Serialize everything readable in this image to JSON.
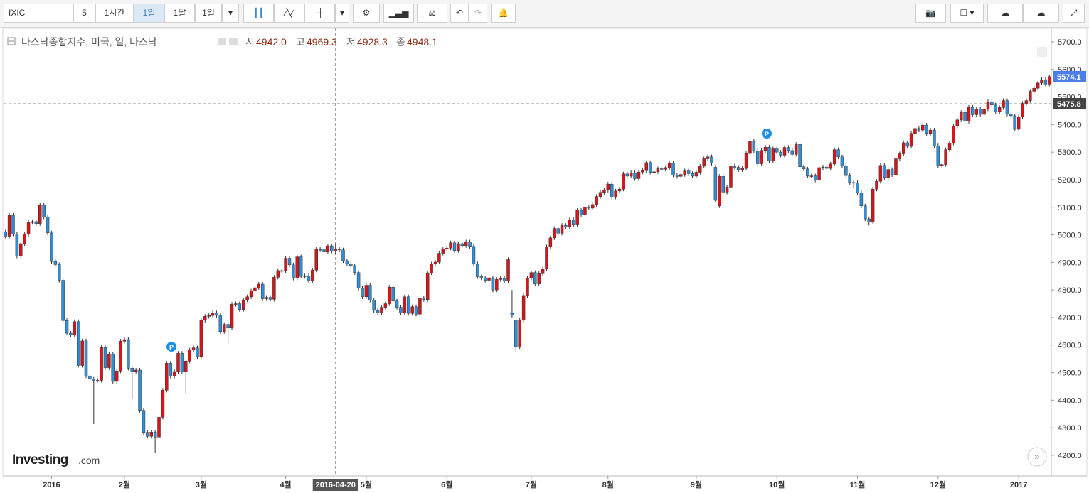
{
  "toolbar": {
    "symbol": "IXIC",
    "buttons": [
      "5",
      "1시간",
      "1일",
      "1달",
      "1일"
    ]
  },
  "chart_data": {
    "type": "candlestick",
    "title": "나스닥종합지수, 미국, 일, 나스닥",
    "readout": [
      {
        "label": "시",
        "value": "4942.0"
      },
      {
        "label": "고",
        "value": "4969.3"
      },
      {
        "label": "저",
        "value": "4928.3"
      },
      {
        "label": "종",
        "value": "4948.1"
      }
    ],
    "categories": [
      null,
      null,
      null,
      null,
      null,
      null,
      null,
      null,
      null,
      null,
      null,
      null,
      "2016",
      null,
      null,
      null,
      null,
      null,
      null,
      null,
      null,
      null,
      null,
      null,
      null,
      null,
      null,
      null,
      null,
      null,
      null,
      "2월",
      null,
      null,
      null,
      null,
      null,
      null,
      null,
      null,
      null,
      null,
      null,
      null,
      null,
      null,
      null,
      null,
      null,
      null,
      null,
      "3월",
      null,
      null,
      null,
      null,
      null,
      null,
      null,
      null,
      null,
      null,
      null,
      null,
      null,
      null,
      null,
      null,
      null,
      null,
      null,
      null,
      null,
      "4월",
      null,
      null,
      null,
      null,
      null,
      null,
      null,
      null,
      null,
      null,
      null,
      null,
      null,
      null,
      null,
      null,
      null,
      null,
      null,
      null,
      "5월",
      null,
      null,
      null,
      null,
      null,
      null,
      null,
      null,
      null,
      null,
      null,
      null,
      null,
      null,
      null,
      null,
      null,
      null,
      null,
      null,
      "6월",
      null,
      null,
      null,
      null,
      null,
      null,
      null,
      null,
      null,
      null,
      null,
      null,
      null,
      null,
      null,
      null,
      null,
      null,
      null,
      null,
      null,
      "7월",
      null,
      null,
      null,
      null,
      null,
      null,
      null,
      null,
      null,
      null,
      null,
      null,
      null,
      null,
      null,
      null,
      null,
      null,
      null,
      "8월",
      null,
      null,
      null,
      null,
      null,
      null,
      null,
      null,
      null,
      null,
      null,
      null,
      null,
      null,
      null,
      null,
      null,
      null,
      null,
      null,
      null,
      null,
      "9월",
      null,
      null,
      null,
      null,
      null,
      null,
      null,
      null,
      null,
      null,
      null,
      null,
      null,
      null,
      null,
      null,
      null,
      null,
      null,
      null,
      "10월",
      null,
      null,
      null,
      null,
      null,
      null,
      null,
      null,
      null,
      null,
      null,
      null,
      null,
      null,
      null,
      null,
      null,
      null,
      null,
      null,
      "11월",
      null,
      null,
      null,
      null,
      null,
      null,
      null,
      null,
      null,
      null,
      null,
      null,
      null,
      null,
      null,
      null,
      null,
      null,
      null,
      null,
      "12월",
      null,
      null,
      null,
      null,
      null,
      null,
      null,
      null,
      null,
      null,
      null,
      null,
      null,
      null,
      null,
      null,
      null,
      null,
      null,
      null,
      "2017",
      null,
      null,
      null,
      null,
      null,
      null,
      null,
      null
    ],
    "open": [
      5010,
      4995,
      5071,
      5003,
      4923,
      4968,
      5002,
      5045,
      5048,
      5041,
      5107,
      5065,
      5007,
      4903,
      4892,
      4835,
      4689,
      4643,
      4637,
      4685,
      4526,
      4615,
      4488,
      4476,
      4472,
      4472,
      4591,
      4518,
      4568,
      4468,
      4506,
      4614,
      4620,
      4516,
      4504,
      4509,
      4363,
      4283,
      4269,
      4284,
      4266,
      4338,
      4436,
      4534,
      4487,
      4504,
      4570,
      4503,
      4542,
      4582,
      4590,
      4558,
      4690,
      4704,
      4707,
      4717,
      4708,
      4649,
      4675,
      4662,
      4748,
      4750,
      4729,
      4764,
      4775,
      4796,
      4808,
      4821,
      4768,
      4773,
      4766,
      4846,
      4870,
      4870,
      4915,
      4891,
      4843,
      4920,
      4849,
      4851,
      4833,
      4872,
      4947,
      4946,
      4938,
      4960,
      4942,
      4948,
      4945,
      4906,
      4895,
      4888,
      4863,
      4806,
      4775,
      4817,
      4763,
      4726,
      4717,
      4737,
      4750,
      4810,
      4760,
      4737,
      4717,
      4775,
      4715,
      4739,
      4712,
      4770,
      4765,
      4862,
      4894,
      4901,
      4933,
      4948,
      4952,
      4971,
      4943,
      4968,
      4961,
      4974,
      4958,
      4895,
      4848,
      4844,
      4835,
      4844,
      4800,
      4838,
      4843,
      4833,
      4715,
      4690,
      4594,
      4691,
      4780,
      4843,
      4863,
      4822,
      4859,
      4876,
      4956,
      4989,
      5023,
      5006,
      5034,
      5029,
      5055,
      5036,
      5089,
      5073,
      5100,
      5097,
      5110,
      5139,
      5154,
      5162,
      5184,
      5137,
      5159,
      5166,
      5221,
      5213,
      5225,
      5204,
      5228,
      5233,
      5262,
      5227,
      5229,
      5240,
      5238,
      5244,
      5260,
      5217,
      5212,
      5219,
      5232,
      5222,
      5213,
      5227,
      5249,
      5276,
      5283,
      5245,
      5105,
      5212,
      5155,
      5173,
      5250,
      5245,
      5236,
      5241,
      5295,
      5339,
      5305,
      5258,
      5306,
      5318,
      5269,
      5312,
      5300,
      5289,
      5317,
      5306,
      5292,
      5328,
      5247,
      5239,
      5213,
      5214,
      5199,
      5244,
      5246,
      5241,
      5257,
      5309,
      5283,
      5251,
      5215,
      5190,
      5189,
      5153,
      5105,
      5058,
      5046,
      5166,
      5194,
      5252,
      5208,
      5237,
      5218,
      5276,
      5294,
      5334,
      5321,
      5368,
      5386,
      5380,
      5398,
      5368,
      5380,
      5323,
      5251,
      5255,
      5309,
      5333,
      5394,
      5417,
      5444,
      5412,
      5463,
      5436,
      5457,
      5437,
      5457,
      5483,
      5471,
      5447,
      5462,
      5487,
      5438,
      5432,
      5383,
      5429,
      5477,
      5487,
      5521,
      5532,
      5551,
      5563,
      5547
    ],
    "high": [
      5018,
      5079,
      5079,
      5011,
      4976,
      5010,
      5053,
      5056,
      5056,
      5115,
      5115,
      5073,
      5015,
      4911,
      4900,
      4843,
      4697,
      4651,
      4693,
      4693,
      4623,
      4623,
      4496,
      4484,
      4480,
      4599,
      4599,
      4576,
      4576,
      4514,
      4622,
      4628,
      4628,
      4524,
      4517,
      4517,
      4371,
      4291,
      4292,
      4292,
      4346,
      4444,
      4542,
      4542,
      4512,
      4578,
      4578,
      4550,
      4590,
      4598,
      4598,
      4698,
      4712,
      4715,
      4725,
      4725,
      4716,
      4683,
      4683,
      4756,
      4758,
      4758,
      4772,
      4783,
      4804,
      4816,
      4829,
      4829,
      4781,
      4781,
      4854,
      4878,
      4878,
      4923,
      4923,
      4899,
      4928,
      4928,
      4859,
      4859,
      4880,
      4955,
      4955,
      4954,
      4968,
      4968,
      4969.3,
      4956,
      4953,
      4914,
      4903,
      4896,
      4871,
      4814,
      4825,
      4825,
      4771,
      4734,
      4745,
      4758,
      4818,
      4818,
      4768,
      4745,
      4783,
      4783,
      4747,
      4747,
      4778,
      4778,
      4870,
      4902,
      4909,
      4941,
      4956,
      4960,
      4979,
      4979,
      4976,
      4976,
      4982,
      4982,
      4966,
      4903,
      4856,
      4852,
      4852,
      4852,
      4846,
      4851,
      4851,
      4918,
      4800,
      4692,
      4699,
      4788,
      4851,
      4871,
      4871,
      4867,
      4884,
      4964,
      4997,
      5031,
      5031,
      5042,
      5042,
      5063,
      5063,
      5097,
      5097,
      5108,
      5108,
      5118,
      5147,
      5162,
      5170,
      5192,
      5192,
      5167,
      5174,
      5229,
      5229,
      5233,
      5233,
      5236,
      5241,
      5270,
      5270,
      5237,
      5248,
      5248,
      5252,
      5268,
      5268,
      5225,
      5227,
      5240,
      5240,
      5230,
      5235,
      5257,
      5284,
      5291,
      5291,
      5253,
      5220,
      5220,
      5181,
      5258,
      5258,
      5253,
      5249,
      5303,
      5347,
      5347,
      5313,
      5314,
      5326,
      5326,
      5320,
      5320,
      5308,
      5325,
      5325,
      5314,
      5336,
      5336,
      5255,
      5247,
      5222,
      5222,
      5252,
      5254,
      5254,
      5265,
      5317,
      5317,
      5291,
      5259,
      5223,
      5198,
      5197,
      5161,
      5113,
      5066,
      5174,
      5202,
      5260,
      5260,
      5245,
      5245,
      5284,
      5302,
      5342,
      5342,
      5376,
      5394,
      5394,
      5406,
      5406,
      5388,
      5388,
      5331,
      5263,
      5317,
      5341,
      5402,
      5425,
      5452,
      5452,
      5471,
      5471,
      5465,
      5465,
      5465,
      5491,
      5491,
      5479,
      5470,
      5495,
      5495,
      5446,
      5440,
      5437,
      5485,
      5495,
      5529,
      5540,
      5559,
      5571,
      5571,
      5582
    ],
    "low": [
      4987,
      4987,
      4995,
      4915,
      4915,
      4960,
      4994,
      5037,
      5033,
      5033,
      5057,
      4999,
      4895,
      4884,
      4827,
      4681,
      4635,
      4629,
      4629,
      4518,
      4518,
      4480,
      4468,
      4313,
      4464,
      4464,
      4510,
      4510,
      4460,
      4460,
      4498,
      4606,
      4508,
      4405,
      4496,
      4355,
      4275,
      4261,
      4261,
      4209,
      4258,
      4330,
      4428,
      4479,
      4479,
      4496,
      4495,
      4425,
      4534,
      4574,
      4550,
      4550,
      4682,
      4696,
      4699,
      4700,
      4641,
      4641,
      4605,
      4654,
      4740,
      4721,
      4721,
      4756,
      4767,
      4788,
      4800,
      4760,
      4760,
      4758,
      4758,
      4838,
      4862,
      4862,
      4883,
      4835,
      4835,
      4841,
      4841,
      4825,
      4825,
      4864,
      4938,
      4930,
      4930,
      4933,
      4928.3,
      4937,
      4898,
      4887,
      4880,
      4855,
      4798,
      4767,
      4767,
      4755,
      4718,
      4709,
      4709,
      4729,
      4742,
      4752,
      4729,
      4709,
      4709,
      4707,
      4707,
      4704,
      4704,
      4757,
      4757,
      4854,
      4886,
      4893,
      4925,
      4940,
      4944,
      4935,
      4935,
      4953,
      4953,
      4950,
      4887,
      4840,
      4836,
      4827,
      4827,
      4792,
      4792,
      4830,
      4825,
      4825,
      4700,
      4574,
      4586,
      4683,
      4772,
      4835,
      4814,
      4814,
      4851,
      4868,
      4948,
      4981,
      4998,
      4998,
      5021,
      5021,
      5028,
      5028,
      5065,
      5065,
      5089,
      5089,
      5102,
      5131,
      5146,
      5154,
      5129,
      5129,
      5151,
      5158,
      5205,
      5205,
      5196,
      5196,
      5220,
      5225,
      5219,
      5219,
      5221,
      5230,
      5230,
      5236,
      5209,
      5204,
      5204,
      5211,
      5214,
      5205,
      5205,
      5219,
      5241,
      5268,
      5252,
      5117,
      5097,
      5147,
      5147,
      5165,
      5237,
      5228,
      5228,
      5233,
      5287,
      5297,
      5250,
      5250,
      5298,
      5261,
      5261,
      5292,
      5281,
      5281,
      5298,
      5284,
      5284,
      5239,
      5231,
      5205,
      5205,
      5191,
      5191,
      5236,
      5233,
      5233,
      5249,
      5275,
      5243,
      5207,
      5182,
      5170,
      5145,
      5097,
      5050,
      5034,
      5038,
      5158,
      5186,
      5200,
      5200,
      5210,
      5210,
      5268,
      5286,
      5313,
      5313,
      5360,
      5372,
      5372,
      5360,
      5360,
      5315,
      5243,
      5243,
      5247,
      5301,
      5325,
      5386,
      5409,
      5404,
      5404,
      5428,
      5428,
      5429,
      5429,
      5449,
      5463,
      5439,
      5439,
      5454,
      5430,
      5424,
      5375,
      5375,
      5421,
      5469,
      5479,
      5513,
      5524,
      5543,
      5539,
      5539
    ],
    "close": [
      4995,
      5071,
      5003,
      4923,
      4968,
      5002,
      5045,
      5048,
      5041,
      5107,
      5065,
      5007,
      4903,
      4892,
      4835,
      4689,
      4643,
      4637,
      4685,
      4526,
      4615,
      4488,
      4476,
      4472,
      4472,
      4591,
      4518,
      4568,
      4468,
      4506,
      4614,
      4620,
      4516,
      4504,
      4509,
      4363,
      4283,
      4269,
      4284,
      4266,
      4338,
      4436,
      4534,
      4487,
      4504,
      4570,
      4503,
      4542,
      4582,
      4590,
      4558,
      4690,
      4704,
      4707,
      4717,
      4708,
      4649,
      4675,
      4662,
      4748,
      4750,
      4729,
      4764,
      4775,
      4796,
      4808,
      4821,
      4768,
      4773,
      4766,
      4846,
      4870,
      4870,
      4915,
      4891,
      4843,
      4920,
      4849,
      4851,
      4833,
      4872,
      4947,
      4946,
      4938,
      4960,
      4941,
      4948.1,
      4945,
      4906,
      4895,
      4888,
      4863,
      4806,
      4775,
      4817,
      4763,
      4726,
      4717,
      4737,
      4750,
      4810,
      4760,
      4737,
      4717,
      4775,
      4715,
      4739,
      4712,
      4770,
      4765,
      4862,
      4894,
      4901,
      4933,
      4948,
      4952,
      4971,
      4943,
      4968,
      4961,
      4974,
      4958,
      4895,
      4848,
      4844,
      4835,
      4844,
      4800,
      4838,
      4843,
      4833,
      4910,
      4708,
      4594,
      4691,
      4780,
      4843,
      4863,
      4822,
      4859,
      4876,
      4956,
      4989,
      5023,
      5006,
      5034,
      5029,
      5055,
      5036,
      5089,
      5073,
      5100,
      5097,
      5110,
      5139,
      5154,
      5162,
      5184,
      5137,
      5159,
      5166,
      5221,
      5213,
      5225,
      5204,
      5228,
      5233,
      5262,
      5227,
      5229,
      5240,
      5238,
      5244,
      5260,
      5217,
      5212,
      5219,
      5232,
      5222,
      5213,
      5227,
      5249,
      5276,
      5283,
      5260,
      5125,
      5212,
      5155,
      5173,
      5250,
      5245,
      5236,
      5241,
      5295,
      5339,
      5305,
      5258,
      5306,
      5318,
      5269,
      5312,
      5300,
      5289,
      5317,
      5306,
      5292,
      5328,
      5247,
      5239,
      5213,
      5214,
      5199,
      5244,
      5246,
      5241,
      5257,
      5309,
      5283,
      5251,
      5215,
      5190,
      5189,
      5153,
      5105,
      5058,
      5046,
      5166,
      5194,
      5252,
      5208,
      5237,
      5218,
      5276,
      5294,
      5334,
      5321,
      5368,
      5386,
      5380,
      5398,
      5368,
      5380,
      5323,
      5251,
      5255,
      5309,
      5333,
      5394,
      5417,
      5444,
      5412,
      5463,
      5436,
      5457,
      5437,
      5457,
      5483,
      5471,
      5447,
      5462,
      5487,
      5438,
      5432,
      5383,
      5429,
      5477,
      5487,
      5521,
      5532,
      5551,
      5563,
      5547,
      5574.1
    ],
    "up_color": "#d7141a",
    "down_color": "#2e8fd8",
    "ylim": [
      4125,
      5749
    ],
    "yticks": [
      {
        "value": 4200,
        "label": "4200.0"
      },
      {
        "value": 4300,
        "label": "4300.0"
      },
      {
        "value": 4400,
        "label": "4400.0"
      },
      {
        "value": 4500,
        "label": "4500.0"
      },
      {
        "value": 4600,
        "label": "4600.0"
      },
      {
        "value": 4700,
        "label": "4700.0"
      },
      {
        "value": 4800,
        "label": "4800.0"
      },
      {
        "value": 4900,
        "label": "4900.0"
      },
      {
        "value": 5000,
        "label": "5000.0"
      },
      {
        "value": 5100,
        "label": "5100.0"
      },
      {
        "value": 5200,
        "label": "5200.0"
      },
      {
        "value": 5300,
        "label": "5300.0"
      },
      {
        "value": 5400,
        "label": "5400.0"
      },
      {
        "value": 5500,
        "label": "5500.0"
      },
      {
        "value": 5600,
        "label": "5600.0"
      },
      {
        "value": 5700,
        "label": "5700.0"
      }
    ],
    "crosshair": {
      "x_label": "2016-04-20",
      "y": 5475.8
    },
    "annotations": [
      "P",
      "P"
    ]
  },
  "branding": {
    "logo": "Investing",
    "suffix": ".com"
  }
}
